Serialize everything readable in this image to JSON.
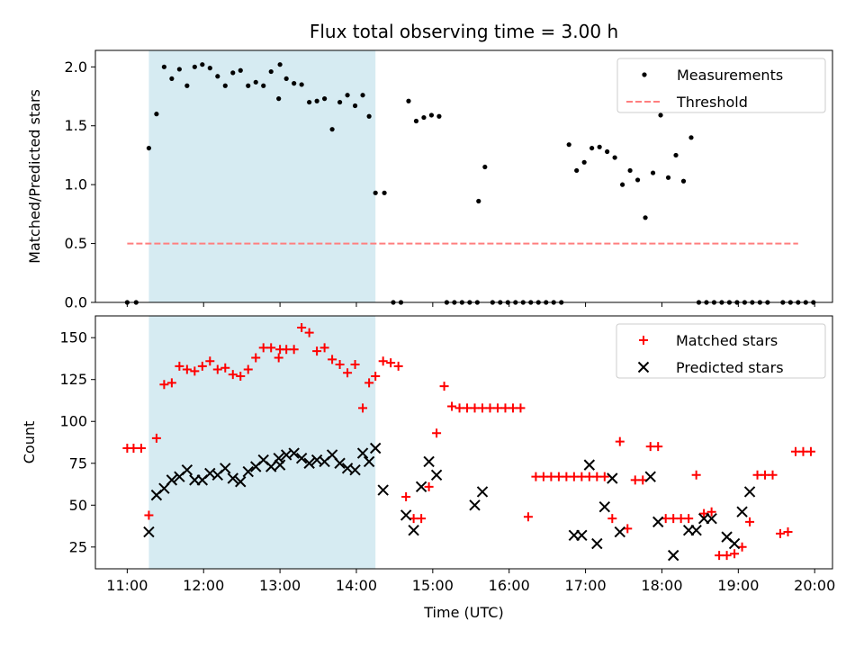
{
  "chart_data": [
    {
      "type": "scatter",
      "title": "Flux total observing time = 3.00 h",
      "xlabel": "",
      "ylabel": "Matched/Predicted stars",
      "xlim": [
        "10:35",
        "20:14"
      ],
      "ylim": [
        0.0,
        2.14
      ],
      "xticks": [
        "11:00",
        "12:00",
        "13:00",
        "14:00",
        "15:00",
        "16:00",
        "17:00",
        "18:00",
        "19:00",
        "20:00"
      ],
      "yticks": [
        "0.0",
        "0.5",
        "1.0",
        "1.5",
        "2.0"
      ],
      "shaded_span": [
        "11:17",
        "14:15"
      ],
      "legend_position": "upper right",
      "series": [
        {
          "name": "Measurements",
          "style": "dot",
          "color": "#000000",
          "x": [
            "11:00",
            "11:07",
            "11:17",
            "11:23",
            "11:29",
            "11:35",
            "11:41",
            "11:47",
            "11:53",
            "11:59",
            "12:05",
            "12:11",
            "12:17",
            "12:23",
            "12:29",
            "12:35",
            "12:41",
            "12:47",
            "12:53",
            "12:59",
            "13:00",
            "13:05",
            "13:11",
            "13:17",
            "13:23",
            "13:29",
            "13:35",
            "13:41",
            "13:47",
            "13:53",
            "13:59",
            "14:05",
            "14:10",
            "14:15",
            "14:22",
            "14:29",
            "14:35",
            "14:41",
            "14:47",
            "14:53",
            "14:59",
            "15:05",
            "15:11",
            "15:17",
            "15:23",
            "15:29",
            "15:35",
            "15:36",
            "15:41",
            "15:47",
            "15:53",
            "15:59",
            "16:05",
            "16:11",
            "16:17",
            "16:23",
            "16:29",
            "16:35",
            "16:41",
            "16:47",
            "16:53",
            "16:59",
            "17:05",
            "17:11",
            "17:17",
            "17:23",
            "17:29",
            "17:35",
            "17:41",
            "17:47",
            "17:53",
            "17:59",
            "18:05",
            "18:11",
            "18:17",
            "18:23",
            "18:29",
            "18:35",
            "18:41",
            "18:47",
            "18:53",
            "18:59",
            "19:05",
            "19:11",
            "19:17",
            "19:23",
            "19:35",
            "19:41",
            "19:47",
            "19:53",
            "19:59"
          ],
          "y": [
            0.0,
            0.0,
            1.31,
            1.6,
            2.0,
            1.9,
            1.98,
            1.84,
            2.0,
            2.02,
            1.99,
            1.92,
            1.84,
            1.95,
            1.97,
            1.84,
            1.87,
            1.84,
            1.96,
            1.73,
            2.02,
            1.9,
            1.86,
            1.85,
            1.7,
            1.71,
            1.73,
            1.47,
            1.7,
            1.76,
            1.67,
            1.76,
            1.58,
            0.93,
            0.93,
            0.0,
            0.0,
            1.71,
            1.54,
            1.57,
            1.59,
            1.58,
            0.0,
            0.0,
            0.0,
            0.0,
            0.0,
            0.86,
            1.15,
            0.0,
            0.0,
            0.0,
            0.0,
            0.0,
            0.0,
            0.0,
            0.0,
            0.0,
            0.0,
            1.34,
            1.12,
            1.19,
            1.31,
            1.32,
            1.28,
            1.23,
            1.0,
            1.12,
            1.04,
            0.72,
            1.1,
            1.59,
            1.06,
            1.25,
            1.03,
            1.4,
            0.0,
            0.0,
            0.0,
            0.0,
            0.0,
            0.0,
            0.0,
            0.0,
            0.0,
            0.0,
            0.0,
            0.0,
            0.0,
            0.0,
            0.0
          ]
        },
        {
          "name": "Threshold",
          "style": "dashed-line",
          "color": "#ff7f7f",
          "x": [
            "11:00",
            "19:47"
          ],
          "y": [
            0.5,
            0.5
          ]
        }
      ]
    },
    {
      "type": "scatter",
      "title": "",
      "xlabel": "Time (UTC)",
      "ylabel": "Count",
      "xlim": [
        "10:35",
        "20:14"
      ],
      "ylim": [
        12,
        163
      ],
      "xticks": [
        "11:00",
        "12:00",
        "13:00",
        "14:00",
        "15:00",
        "16:00",
        "17:00",
        "18:00",
        "19:00",
        "20:00"
      ],
      "yticks": [
        "25",
        "50",
        "75",
        "100",
        "125",
        "150"
      ],
      "shaded_span": [
        "11:17",
        "14:15"
      ],
      "legend_position": "upper right",
      "series": [
        {
          "name": "Matched stars",
          "style": "plus",
          "color": "#ff0000",
          "x": [
            "11:00",
            "11:05",
            "11:11",
            "11:17",
            "11:23",
            "11:29",
            "11:35",
            "11:41",
            "11:47",
            "11:53",
            "11:59",
            "12:05",
            "12:11",
            "12:17",
            "12:23",
            "12:29",
            "12:35",
            "12:41",
            "12:47",
            "12:53",
            "12:59",
            "13:00",
            "13:05",
            "13:11",
            "13:17",
            "13:23",
            "13:29",
            "13:35",
            "13:41",
            "13:47",
            "13:53",
            "13:59",
            "14:05",
            "14:10",
            "14:15",
            "14:21",
            "14:27",
            "14:33",
            "14:39",
            "14:45",
            "14:51",
            "14:57",
            "15:03",
            "15:09",
            "15:15",
            "15:21",
            "15:27",
            "15:33",
            "15:39",
            "15:45",
            "15:51",
            "15:57",
            "16:03",
            "16:09",
            "16:15",
            "16:21",
            "16:27",
            "16:33",
            "16:39",
            "16:45",
            "16:51",
            "16:57",
            "17:03",
            "17:09",
            "17:15",
            "17:21",
            "17:27",
            "17:33",
            "17:39",
            "17:45",
            "17:51",
            "17:57",
            "18:03",
            "18:09",
            "18:15",
            "18:21",
            "18:27",
            "18:33",
            "18:39",
            "18:45",
            "18:51",
            "18:57",
            "19:03",
            "19:09",
            "19:15",
            "19:21",
            "19:27",
            "19:33",
            "19:39",
            "19:45",
            "19:51",
            "19:57"
          ],
          "y": [
            84,
            84,
            84,
            44,
            90,
            122,
            123,
            133,
            131,
            130,
            133,
            136,
            131,
            132,
            128,
            127,
            131,
            138,
            144,
            144,
            138,
            143,
            143,
            143,
            156,
            153,
            142,
            144,
            137,
            134,
            129,
            134,
            108,
            123,
            127,
            136,
            135,
            133,
            55,
            42,
            42,
            61,
            93,
            121,
            109,
            108,
            108,
            108,
            108,
            108,
            108,
            108,
            108,
            108,
            43,
            67,
            67,
            67,
            67,
            67,
            67,
            67,
            67,
            67,
            67,
            42,
            88,
            36,
            65,
            65,
            85,
            85,
            42,
            42,
            42,
            42,
            68,
            45,
            46,
            20,
            20,
            21,
            25,
            40,
            68,
            68,
            68,
            33,
            34,
            82,
            82,
            82
          ]
        },
        {
          "name": "Predicted stars",
          "style": "x",
          "color": "#000000",
          "x": [
            "11:17",
            "11:23",
            "11:29",
            "11:35",
            "11:41",
            "11:47",
            "11:53",
            "11:59",
            "12:05",
            "12:11",
            "12:17",
            "12:23",
            "12:29",
            "12:35",
            "12:41",
            "12:47",
            "12:53",
            "12:59",
            "13:00",
            "13:05",
            "13:11",
            "13:17",
            "13:23",
            "13:29",
            "13:35",
            "13:41",
            "13:47",
            "13:53",
            "13:59",
            "14:05",
            "14:10",
            "14:15",
            "14:21",
            "14:39",
            "14:45",
            "14:51",
            "14:57",
            "15:03",
            "15:33",
            "15:39",
            "16:51",
            "16:57",
            "17:03",
            "17:09",
            "17:15",
            "17:21",
            "17:27",
            "17:51",
            "17:57",
            "18:09",
            "18:21",
            "18:27",
            "18:33",
            "18:39",
            "18:51",
            "18:57",
            "19:03",
            "19:09"
          ],
          "y": [
            34,
            56,
            60,
            65,
            67,
            71,
            65,
            65,
            69,
            68,
            72,
            66,
            64,
            70,
            73,
            77,
            73,
            78,
            74,
            80,
            81,
            78,
            75,
            77,
            76,
            80,
            75,
            72,
            71,
            81,
            76,
            84,
            59,
            44,
            35,
            61,
            76,
            68,
            50,
            58,
            32,
            32,
            74,
            27,
            49,
            66,
            34,
            67,
            40,
            20,
            35,
            35,
            42,
            42,
            31,
            27,
            46,
            58
          ]
        }
      ]
    }
  ]
}
